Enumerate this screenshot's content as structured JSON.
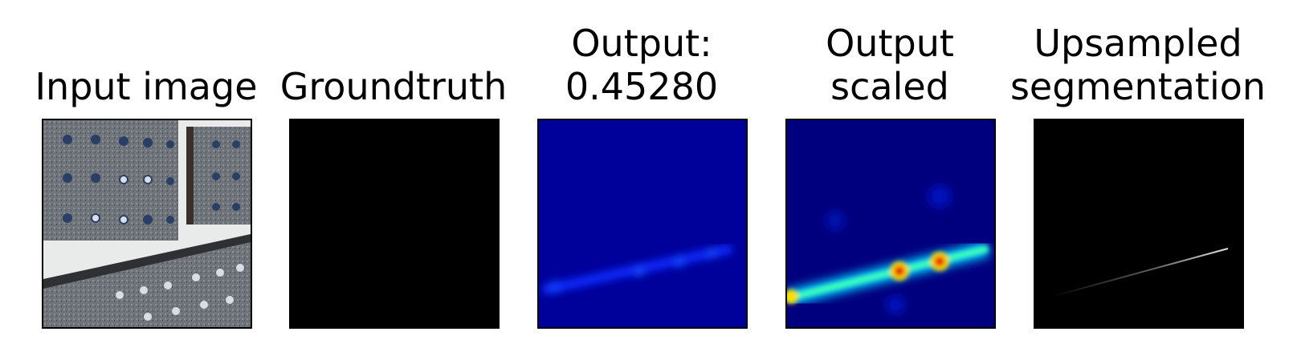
{
  "panels": [
    {
      "title": "Input image",
      "image": "metal-plates-with-holes-photo"
    },
    {
      "title": "Groundtruth",
      "image": "black-mask"
    },
    {
      "title": "Output:\n0.45280",
      "image": "jet-heatmap-faint-diagonal-streak"
    },
    {
      "title": "Output\nscaled",
      "image": "jet-heatmap-bright-diagonal-streak"
    },
    {
      "title": "Upsampled\nsegmentation",
      "image": "faint-white-line-on-black"
    }
  ]
}
